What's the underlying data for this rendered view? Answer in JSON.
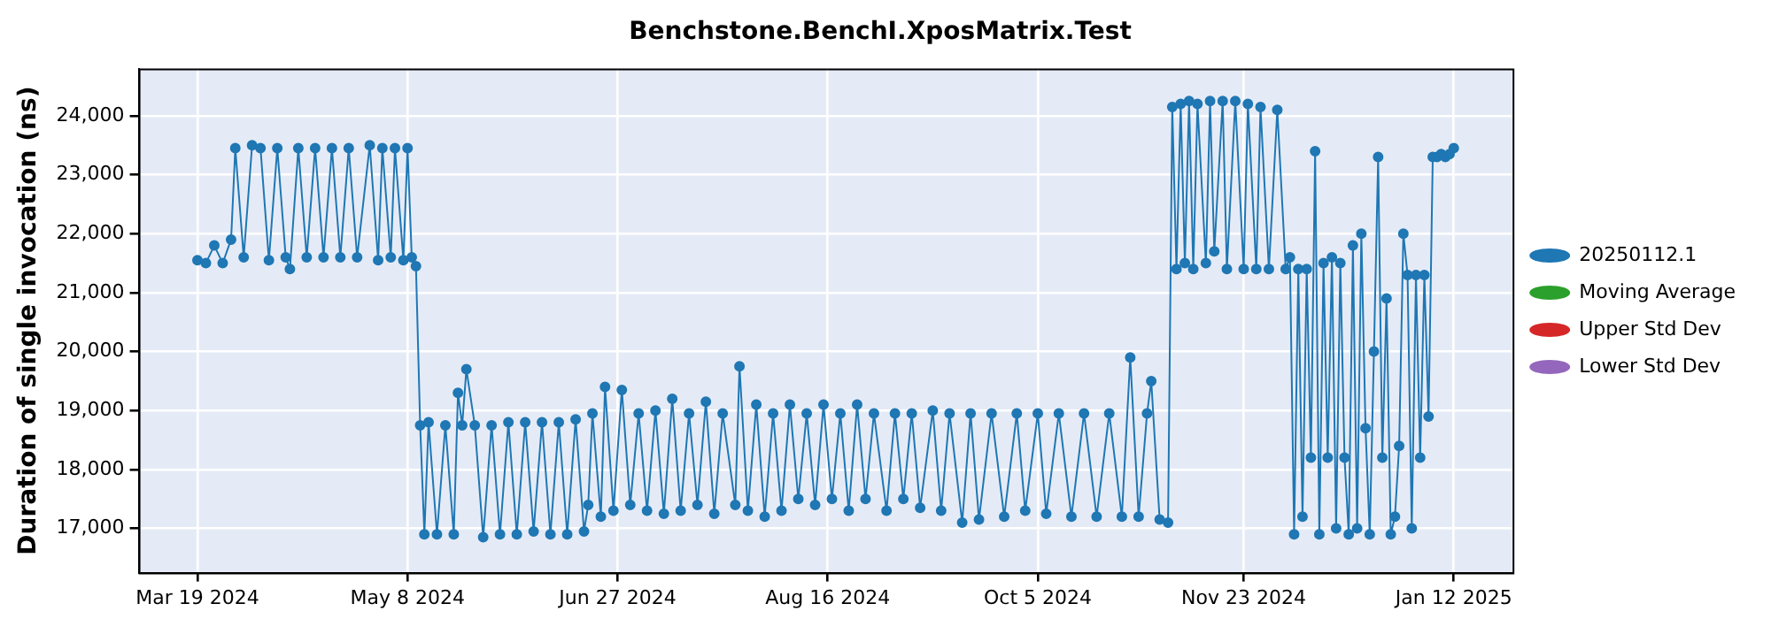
{
  "chart_data": {
    "type": "line",
    "title": "Benchstone.BenchI.XposMatrix.Test",
    "ylabel": "Duration of single invocation (ns)",
    "x": [
      "2024-03-19",
      "2024-03-21",
      "2024-03-23",
      "2024-03-25",
      "2024-03-27",
      "2024-03-28",
      "2024-03-30",
      "2024-04-01",
      "2024-04-03",
      "2024-04-05",
      "2024-04-07",
      "2024-04-09",
      "2024-04-10",
      "2024-04-12",
      "2024-04-14",
      "2024-04-16",
      "2024-04-18",
      "2024-04-20",
      "2024-04-22",
      "2024-04-24",
      "2024-04-26",
      "2024-04-29",
      "2024-05-01",
      "2024-05-02",
      "2024-05-04",
      "2024-05-05",
      "2024-05-07",
      "2024-05-08",
      "2024-05-09",
      "2024-05-10",
      "2024-05-11",
      "2024-05-12",
      "2024-05-13",
      "2024-05-15",
      "2024-05-17",
      "2024-05-19",
      "2024-05-20",
      "2024-05-21",
      "2024-05-22",
      "2024-05-24",
      "2024-05-26",
      "2024-05-28",
      "2024-05-30",
      "2024-06-01",
      "2024-06-03",
      "2024-06-05",
      "2024-06-07",
      "2024-06-09",
      "2024-06-11",
      "2024-06-13",
      "2024-06-15",
      "2024-06-17",
      "2024-06-19",
      "2024-06-20",
      "2024-06-21",
      "2024-06-23",
      "2024-06-24",
      "2024-06-26",
      "2024-06-28",
      "2024-06-30",
      "2024-07-02",
      "2024-07-04",
      "2024-07-06",
      "2024-07-08",
      "2024-07-10",
      "2024-07-12",
      "2024-07-14",
      "2024-07-16",
      "2024-07-18",
      "2024-07-20",
      "2024-07-22",
      "2024-07-25",
      "2024-07-26",
      "2024-07-28",
      "2024-07-30",
      "2024-08-01",
      "2024-08-03",
      "2024-08-05",
      "2024-08-07",
      "2024-08-09",
      "2024-08-11",
      "2024-08-13",
      "2024-08-15",
      "2024-08-17",
      "2024-08-19",
      "2024-08-21",
      "2024-08-23",
      "2024-08-25",
      "2024-08-27",
      "2024-08-30",
      "2024-09-01",
      "2024-09-03",
      "2024-09-05",
      "2024-09-07",
      "2024-09-10",
      "2024-09-12",
      "2024-09-14",
      "2024-09-17",
      "2024-09-19",
      "2024-09-21",
      "2024-09-24",
      "2024-09-27",
      "2024-09-30",
      "2024-10-02",
      "2024-10-05",
      "2024-10-07",
      "2024-10-10",
      "2024-10-13",
      "2024-10-16",
      "2024-10-19",
      "2024-10-22",
      "2024-10-25",
      "2024-10-27",
      "2024-10-29",
      "2024-10-31",
      "2024-11-01",
      "2024-11-03",
      "2024-11-05",
      "2024-11-06",
      "2024-11-07",
      "2024-11-08",
      "2024-11-09",
      "2024-11-10",
      "2024-11-11",
      "2024-11-12",
      "2024-11-14",
      "2024-11-15",
      "2024-11-16",
      "2024-11-18",
      "2024-11-19",
      "2024-11-21",
      "2024-11-23",
      "2024-11-24",
      "2024-11-26",
      "2024-11-27",
      "2024-11-29",
      "2024-12-01",
      "2024-12-03",
      "2024-12-04",
      "2024-12-05",
      "2024-12-06",
      "2024-12-07",
      "2024-12-08",
      "2024-12-09",
      "2024-12-10",
      "2024-12-11",
      "2024-12-12",
      "2024-12-13",
      "2024-12-14",
      "2024-12-15",
      "2024-12-16",
      "2024-12-17",
      "2024-12-18",
      "2024-12-19",
      "2024-12-20",
      "2024-12-21",
      "2024-12-22",
      "2024-12-23",
      "2024-12-24",
      "2024-12-25",
      "2024-12-26",
      "2024-12-27",
      "2024-12-28",
      "2024-12-29",
      "2024-12-30",
      "2024-12-31",
      "2025-01-01",
      "2025-01-02",
      "2025-01-03",
      "2025-01-04",
      "2025-01-05",
      "2025-01-06",
      "2025-01-07",
      "2025-01-08",
      "2025-01-09",
      "2025-01-10",
      "2025-01-11",
      "2025-01-12"
    ],
    "series": [
      {
        "name": "20250112.1",
        "color": "#1f77b4",
        "values": [
          21550,
          21500,
          21800,
          21500,
          21900,
          23450,
          21600,
          23500,
          23450,
          21550,
          23450,
          21600,
          21400,
          23450,
          21600,
          23450,
          21600,
          23450,
          21600,
          23450,
          21600,
          23500,
          21550,
          23450,
          21600,
          23450,
          21550,
          23450,
          21600,
          21450,
          18750,
          16900,
          18800,
          16900,
          18750,
          16900,
          19300,
          18750,
          19700,
          18750,
          16850,
          18750,
          16900,
          18800,
          16900,
          18800,
          16950,
          18800,
          16900,
          18800,
          16900,
          18850,
          16950,
          17400,
          18950,
          17200,
          19400,
          17300,
          19350,
          17400,
          18950,
          17300,
          19000,
          17250,
          19200,
          17300,
          18950,
          17400,
          19150,
          17250,
          18950,
          17400,
          19750,
          17300,
          19100,
          17200,
          18950,
          17300,
          19100,
          17500,
          18950,
          17400,
          19100,
          17500,
          18950,
          17300,
          19100,
          17500,
          18950,
          17300,
          18950,
          17500,
          18950,
          17350,
          19000,
          17300,
          18950,
          17100,
          18950,
          17150,
          18950,
          17200,
          18950,
          17300,
          18950,
          17250,
          18950,
          17200,
          18950,
          17200,
          18950,
          17200,
          19900,
          17200,
          18950,
          19500,
          17150,
          17100,
          24150,
          21400,
          24200,
          21500,
          24250,
          21400,
          24200,
          21500,
          24250,
          21700,
          24250,
          21400,
          24250,
          21400,
          24200,
          21400,
          24150,
          21400,
          24100,
          21400,
          21600,
          16900,
          21400,
          17200,
          21400,
          18200,
          23400,
          16900,
          21500,
          18200,
          21600,
          17000,
          21500,
          18200,
          16900,
          21800,
          17000,
          22000,
          18700,
          16900,
          20000,
          23300,
          18200,
          20900,
          16900,
          17200,
          18400,
          22000,
          21300,
          17000,
          21300,
          18200,
          21300,
          18900,
          23300,
          23300,
          23350,
          23300,
          23350,
          23450
        ]
      },
      {
        "name": "Moving Average",
        "color": "#2ca02c",
        "values": [
          null,
          null,
          null,
          null,
          null,
          null,
          null,
          null,
          null,
          null,
          null,
          null,
          null,
          null,
          null,
          null,
          null,
          null,
          null,
          null,
          null,
          null,
          null,
          null,
          null,
          null,
          null,
          null,
          null,
          null,
          null,
          null,
          null,
          null,
          null,
          null,
          null,
          null,
          null,
          null,
          null,
          null,
          null,
          null,
          null,
          null,
          null,
          null,
          null,
          null,
          null,
          null,
          null,
          null,
          null,
          null,
          null,
          null,
          null,
          null,
          null,
          null,
          null,
          null,
          null,
          null,
          null,
          null,
          null,
          null,
          null,
          null,
          null,
          null,
          null,
          null,
          null,
          null,
          null,
          null,
          null,
          null,
          null,
          null,
          null,
          null,
          null,
          null,
          null,
          null,
          null,
          null,
          null,
          null,
          null,
          null,
          null,
          null,
          null,
          null,
          null,
          null,
          null,
          null,
          null,
          null,
          null,
          null,
          null,
          null,
          null,
          null,
          null,
          null,
          null,
          null,
          null,
          null,
          null,
          null,
          null,
          null,
          null,
          null,
          null,
          null,
          null,
          null,
          null,
          null,
          null,
          null,
          null,
          null,
          null,
          null,
          null,
          null,
          null,
          null,
          null,
          null,
          null,
          null,
          null,
          null,
          null,
          null,
          null,
          null,
          null,
          null,
          null,
          null,
          null,
          null,
          null,
          null,
          null,
          null,
          null,
          null,
          null,
          null,
          null,
          null,
          null,
          null,
          null,
          null,
          null,
          null,
          null,
          null,
          null,
          null,
          null,
          null
        ]
      },
      {
        "name": "Upper Std Dev",
        "color": "#d62728",
        "values": [
          null,
          null,
          null,
          null,
          null,
          null,
          null,
          null,
          null,
          null,
          null,
          null,
          null,
          null,
          null,
          null,
          null,
          null,
          null,
          null,
          null,
          null,
          null,
          null,
          null,
          null,
          null,
          null,
          null,
          null,
          null,
          null,
          null,
          null,
          null,
          null,
          null,
          null,
          null,
          null,
          null,
          null,
          null,
          null,
          null,
          null,
          null,
          null,
          null,
          null,
          null,
          null,
          null,
          null,
          null,
          null,
          null,
          null,
          null,
          null,
          null,
          null,
          null,
          null,
          null,
          null,
          null,
          null,
          null,
          null,
          null,
          null,
          null,
          null,
          null,
          null,
          null,
          null,
          null,
          null,
          null,
          null,
          null,
          null,
          null,
          null,
          null,
          null,
          null,
          null,
          null,
          null,
          null,
          null,
          null,
          null,
          null,
          null,
          null,
          null,
          null,
          null,
          null,
          null,
          null,
          null,
          null,
          null,
          null,
          null,
          null,
          null,
          null,
          null,
          null,
          null,
          null,
          null,
          null,
          null,
          null,
          null,
          null,
          null,
          null,
          null,
          null,
          null,
          null,
          null,
          null,
          null,
          null,
          null,
          null,
          null,
          null,
          null,
          null,
          null,
          null,
          null,
          null,
          null,
          null,
          null,
          null,
          null,
          null,
          null,
          null,
          null,
          null,
          null,
          null,
          null,
          null,
          null,
          null,
          null,
          null,
          null,
          null,
          null,
          null,
          null,
          null,
          null,
          null,
          null,
          null,
          null,
          null,
          null,
          null,
          null,
          null,
          null
        ]
      },
      {
        "name": "Lower Std Dev",
        "color": "#9467bd",
        "values": [
          null,
          null,
          null,
          null,
          null,
          null,
          null,
          null,
          null,
          null,
          null,
          null,
          null,
          null,
          null,
          null,
          null,
          null,
          null,
          null,
          null,
          null,
          null,
          null,
          null,
          null,
          null,
          null,
          null,
          null,
          null,
          null,
          null,
          null,
          null,
          null,
          null,
          null,
          null,
          null,
          null,
          null,
          null,
          null,
          null,
          null,
          null,
          null,
          null,
          null,
          null,
          null,
          null,
          null,
          null,
          null,
          null,
          null,
          null,
          null,
          null,
          null,
          null,
          null,
          null,
          null,
          null,
          null,
          null,
          null,
          null,
          null,
          null,
          null,
          null,
          null,
          null,
          null,
          null,
          null,
          null,
          null,
          null,
          null,
          null,
          null,
          null,
          null,
          null,
          null,
          null,
          null,
          null,
          null,
          null,
          null,
          null,
          null,
          null,
          null,
          null,
          null,
          null,
          null,
          null,
          null,
          null,
          null,
          null,
          null,
          null,
          null,
          null,
          null,
          null,
          null,
          null,
          null,
          null,
          null,
          null,
          null,
          null,
          null,
          null,
          null,
          null,
          null,
          null,
          null,
          null,
          null,
          null,
          null,
          null,
          null,
          null,
          null,
          null,
          null,
          null,
          null,
          null,
          null,
          null,
          null,
          null,
          null,
          null,
          null,
          null,
          null,
          null,
          null,
          null,
          null,
          null,
          null,
          null,
          null,
          null,
          null,
          null,
          null,
          null,
          null,
          null,
          null,
          null,
          null,
          null,
          null,
          null,
          null,
          null,
          null,
          null,
          null
        ]
      }
    ],
    "xlim": [
      "2024-03-05",
      "2025-01-26"
    ],
    "xticks": [
      {
        "value": "2024-03-19",
        "label": "Mar 19 2024"
      },
      {
        "value": "2024-05-08",
        "label": "May 8 2024"
      },
      {
        "value": "2024-06-27",
        "label": "Jun 27 2024"
      },
      {
        "value": "2024-08-16",
        "label": "Aug 16 2024"
      },
      {
        "value": "2024-10-05",
        "label": "Oct 5 2024"
      },
      {
        "value": "2024-11-23",
        "label": "Nov 23 2024"
      },
      {
        "value": "2025-01-12",
        "label": "Jan 12 2025"
      }
    ],
    "ylim": [
      16250,
      24800
    ],
    "yticks": [
      {
        "value": 17000,
        "label": "17,000"
      },
      {
        "value": 18000,
        "label": "18,000"
      },
      {
        "value": 19000,
        "label": "19,000"
      },
      {
        "value": 20000,
        "label": "20,000"
      },
      {
        "value": 21000,
        "label": "21,000"
      },
      {
        "value": 22000,
        "label": "22,000"
      },
      {
        "value": 23000,
        "label": "23,000"
      },
      {
        "value": 24000,
        "label": "24,000"
      }
    ],
    "grid": true,
    "legend": "right",
    "marker": "circle",
    "line_style": "solid"
  }
}
